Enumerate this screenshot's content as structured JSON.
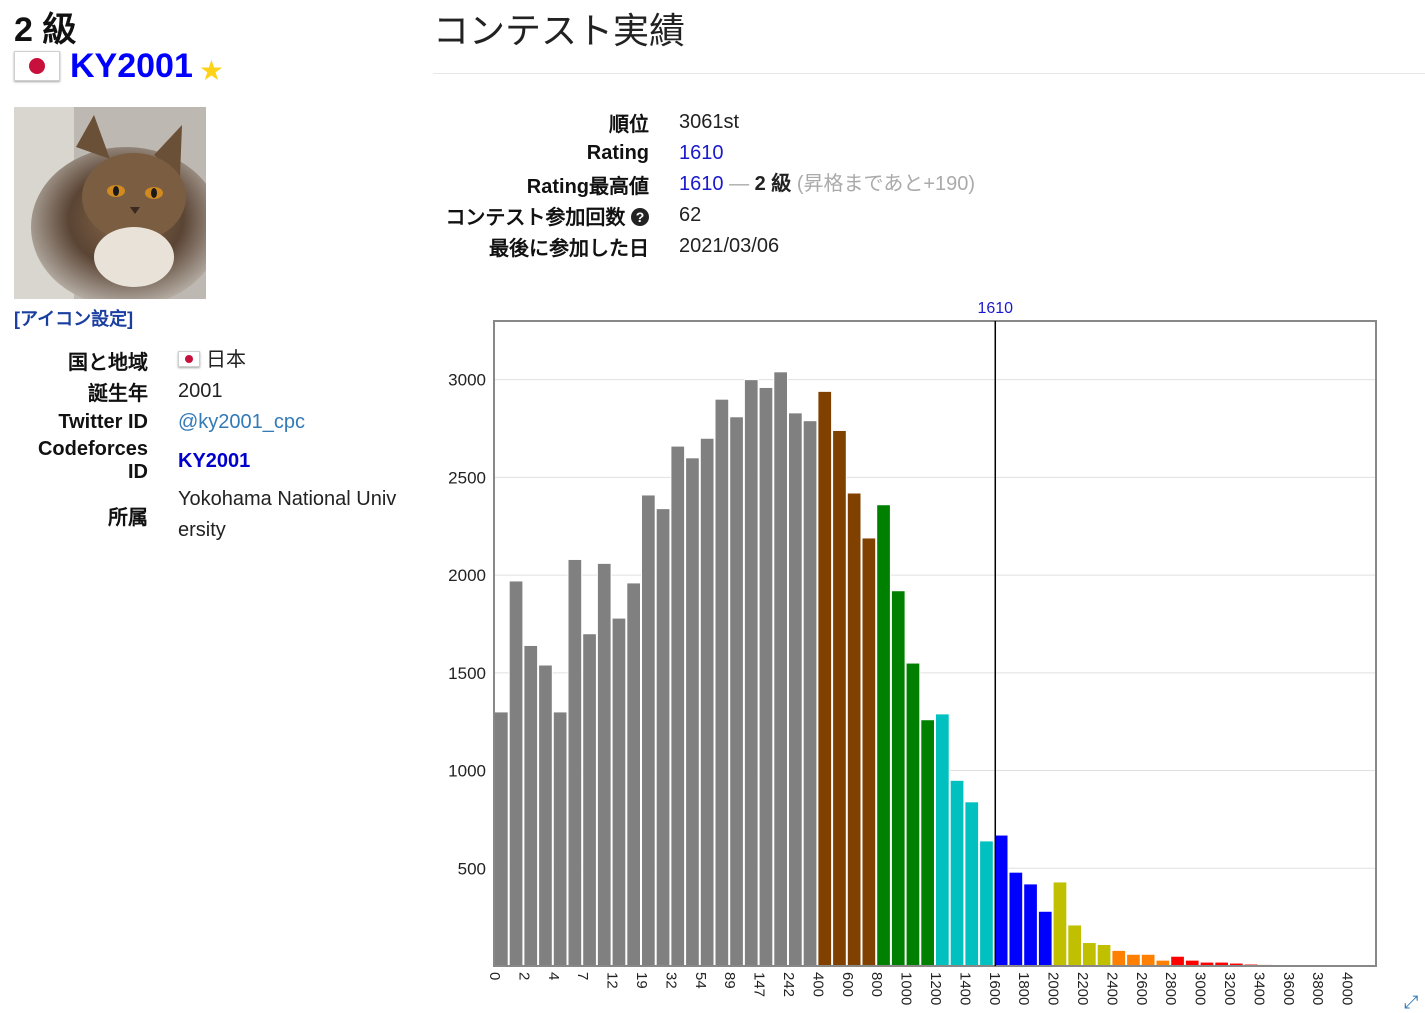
{
  "profile": {
    "rank": "2 級",
    "username": "KY2001",
    "icon_settings": "[アイコン設定]",
    "rows": [
      {
        "label": "国と地域",
        "value": "日本"
      },
      {
        "label": "誕生年",
        "value": "2001"
      },
      {
        "label": "Twitter ID",
        "value": "@ky2001_cpc"
      },
      {
        "label": "Codeforces ID",
        "value": "KY2001"
      },
      {
        "label": "所属",
        "value": "Yokohama National University"
      }
    ]
  },
  "contest": {
    "heading": "コンテスト実績",
    "rank_label": "順位",
    "rank_value": "3061st",
    "rating_label": "Rating",
    "rating_value": "1610",
    "max_label": "Rating最高値",
    "max_value": "1610",
    "max_sep": "—",
    "max_kyu": "2 級",
    "max_note": "(昇格まであと+190)",
    "count_label": "コンテスト参加回数",
    "count_value": "62",
    "last_label": "最後に参加した日",
    "last_value": "2021/03/06"
  },
  "icons": {
    "flag": "japan-flag",
    "star": "star-icon",
    "help": "question-circle-icon",
    "resize": "expand-icon"
  },
  "chart_data": {
    "type": "bar",
    "marker": {
      "value": 1610,
      "label": "1610",
      "color": "#000"
    },
    "ylim": [
      0,
      3300
    ],
    "yticks": [
      500,
      1000,
      1500,
      2000,
      2500,
      3000
    ],
    "x_tick_labels": [
      "0",
      "2",
      "4",
      "7",
      "12",
      "19",
      "32",
      "54",
      "89",
      "147",
      "242",
      "400",
      "600",
      "800",
      "1000",
      "1200",
      "1400",
      "1600",
      "1800",
      "2000",
      "2200",
      "2400",
      "2600",
      "2800",
      "3000",
      "3200",
      "3400",
      "3600",
      "3800",
      "4000"
    ],
    "values": [
      1300,
      1970,
      1640,
      1540,
      1300,
      2080,
      1700,
      2060,
      1780,
      1960,
      2410,
      2340,
      2660,
      2600,
      2700,
      2900,
      2810,
      3000,
      2960,
      3040,
      2830,
      2790,
      2940,
      2740,
      2420,
      2190,
      2360,
      1920,
      1550,
      1260,
      1290,
      950,
      840,
      640,
      670,
      480,
      420,
      280,
      430,
      210,
      120,
      110,
      80,
      60,
      60,
      30,
      50,
      30,
      20,
      20,
      15,
      10,
      8,
      6,
      5,
      5,
      4,
      3,
      3,
      2
    ],
    "colors": {
      "gray": "#808080",
      "brown": "#804000",
      "green": "#008000",
      "cyan": "#00c0c0",
      "blue": "#0000ff",
      "yellow": "#c0c000",
      "orange": "#ff8000",
      "red": "#ff0000"
    },
    "band_colors": [
      "gray",
      "gray",
      "gray",
      "gray",
      "gray",
      "gray",
      "gray",
      "gray",
      "gray",
      "gray",
      "gray",
      "gray",
      "gray",
      "gray",
      "gray",
      "gray",
      "gray",
      "gray",
      "gray",
      "gray",
      "gray",
      "gray",
      "brown",
      "brown",
      "brown",
      "brown",
      "green",
      "green",
      "green",
      "green",
      "cyan",
      "cyan",
      "cyan",
      "cyan",
      "blue",
      "blue",
      "blue",
      "blue",
      "yellow",
      "yellow",
      "yellow",
      "yellow",
      "orange",
      "orange",
      "orange",
      "orange",
      "red",
      "red",
      "red",
      "red",
      "red",
      "red",
      "red",
      "red",
      "red",
      "red",
      "red",
      "red",
      "red",
      "red"
    ]
  }
}
